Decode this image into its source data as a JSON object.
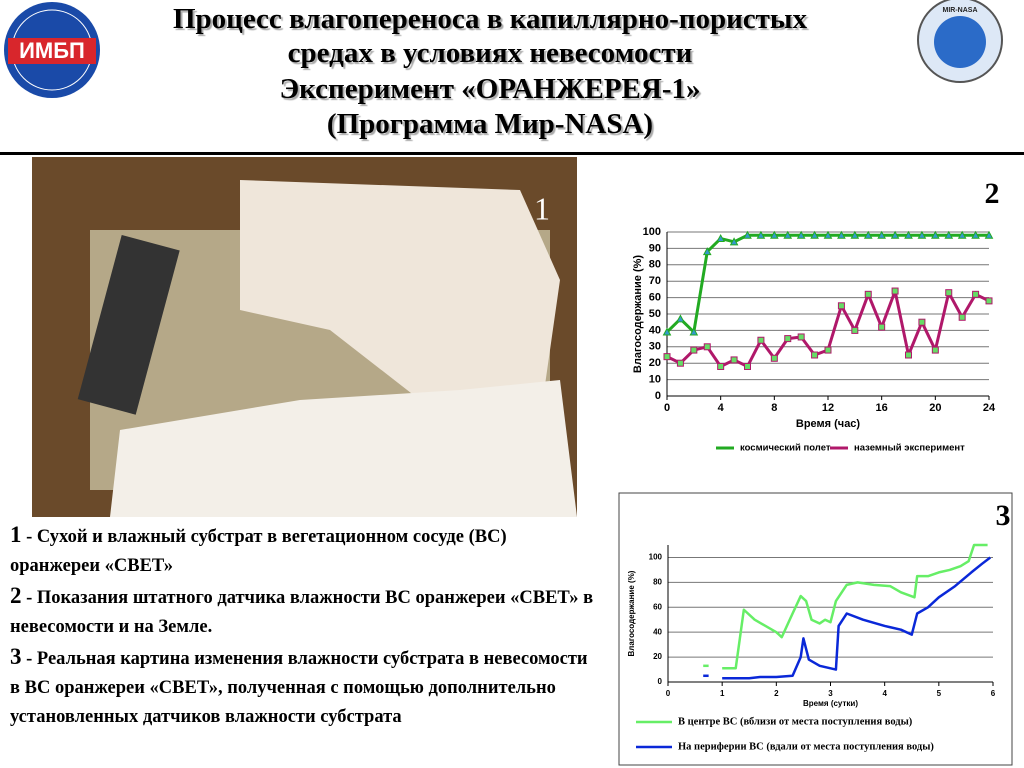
{
  "header": {
    "title_lines": [
      "Процесс влагопереноса в капиллярно-пористых",
      "средах в условиях невесомости",
      "Эксперимент «ОРАНЖЕРЕЯ-1»",
      "(Программа Мир-NASA)"
    ],
    "left_logo": "ИМБП",
    "right_logo": "MIR-NASA"
  },
  "panel_labels": [
    "1",
    "2",
    "3"
  ],
  "caption": [
    {
      "num": "1",
      "text": " - Сухой и влажный субстрат в вегетационном сосуде (ВС) оранжереи «СВЕТ»"
    },
    {
      "num": "2",
      "text": " - Показания штатного датчика влажности ВС оранжереи «СВЕТ» в невесомости и на Земле."
    },
    {
      "num": "3",
      "text": " - Реальная картина изменения влажности субстрата в невесомости в ВС оранжереи «СВЕТ», полученная с помощью дополнительно установленных датчиков влажности субстрата"
    }
  ],
  "chart_data": [
    {
      "type": "line",
      "xlabel": "Время (час)",
      "ylabel": "Влагосодержание (%)",
      "markers": true,
      "grid": true,
      "x": [
        0,
        1,
        2,
        3,
        4,
        5,
        6,
        7,
        8,
        9,
        10,
        11,
        12,
        13,
        14,
        15,
        16,
        17,
        18,
        19,
        20,
        21,
        22,
        23,
        24
      ],
      "series": [
        {
          "name": "космический полет",
          "color": "#22aa22",
          "values": [
            39,
            47,
            39,
            88,
            96,
            94,
            98,
            98,
            98,
            98,
            98,
            98,
            98,
            98,
            98,
            98,
            98,
            98,
            98,
            98,
            98,
            98,
            98,
            98,
            98
          ]
        },
        {
          "name": "наземный эксперимент",
          "color": "#b0186a",
          "values": [
            24,
            20,
            28,
            30,
            18,
            22,
            18,
            34,
            23,
            35,
            36,
            25,
            28,
            55,
            40,
            62,
            42,
            64,
            25,
            45,
            28,
            63,
            48,
            62,
            58
          ]
        }
      ],
      "xlim": [
        0,
        24
      ],
      "xticks": [
        0,
        4,
        8,
        12,
        16,
        20,
        24
      ],
      "ylim": [
        0,
        100
      ],
      "yticks": [
        0,
        10,
        20,
        30,
        40,
        50,
        60,
        70,
        80,
        90,
        100
      ]
    },
    {
      "type": "line",
      "xlabel": "Время (сутки)",
      "ylabel": "Влагосодержание (%)",
      "markers": false,
      "grid": true,
      "series": [
        {
          "name": "В центре ВС (вблизи от места поступления воды)",
          "color": "#66ee66",
          "x": [
            0.65,
            0.75,
            null,
            1.0,
            1.25,
            1.4,
            1.6,
            1.8,
            2.0,
            2.1,
            2.3,
            2.45,
            2.55,
            2.65,
            2.8,
            2.9,
            3.0,
            3.1,
            3.3,
            3.5,
            3.8,
            4.1,
            4.3,
            4.55,
            4.6,
            4.8,
            5.0,
            5.2,
            5.4,
            5.55,
            5.65,
            5.9
          ],
          "values": [
            13,
            13,
            null,
            11,
            11,
            58,
            50,
            45,
            40,
            36,
            55,
            69,
            65,
            50,
            47,
            50,
            48,
            65,
            78,
            80,
            78,
            77,
            72,
            68,
            85,
            85,
            88,
            90,
            93,
            97,
            110,
            110
          ]
        },
        {
          "name": "На периферии ВС (вдали от места поступления воды)",
          "color": "#0a28d8",
          "x": [
            0.65,
            0.75,
            null,
            1.0,
            1.3,
            1.5,
            1.7,
            2.0,
            2.3,
            2.45,
            2.5,
            2.6,
            2.8,
            3.0,
            3.1,
            3.15,
            3.3,
            3.6,
            4.0,
            4.3,
            4.5,
            4.6,
            4.8,
            5.0,
            5.3,
            5.6,
            5.8,
            5.95
          ],
          "values": [
            5,
            5,
            null,
            3,
            3,
            3,
            4,
            4,
            5,
            20,
            35,
            18,
            13,
            11,
            10,
            45,
            55,
            50,
            45,
            42,
            38,
            55,
            60,
            68,
            77,
            88,
            95,
            100
          ]
        }
      ],
      "xlim": [
        0,
        6
      ],
      "xticks": [
        0,
        1,
        2,
        3,
        4,
        5,
        6
      ],
      "ylim": [
        0,
        110
      ],
      "yticks": [
        0,
        20,
        40,
        60,
        80,
        100
      ]
    }
  ]
}
